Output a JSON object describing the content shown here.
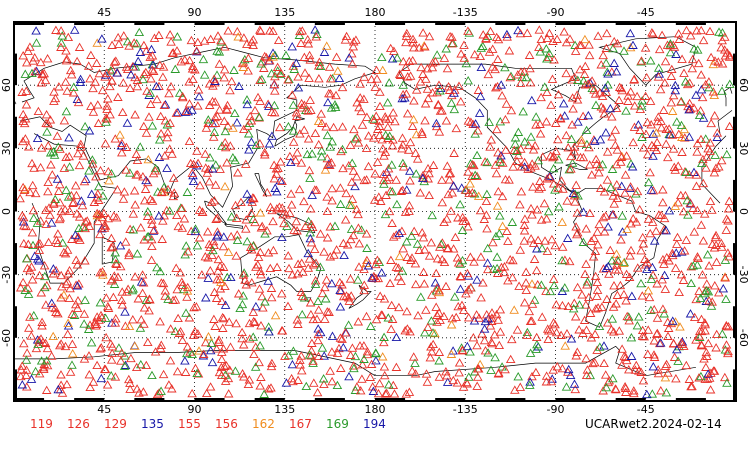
{
  "product_label": "UCARwet2.2024-02-14",
  "colors": {
    "frame": "#000000",
    "coast": "#000000",
    "grid": "#000000"
  },
  "map": {
    "projection": "cylindrical-equidistant",
    "lon_center": 180,
    "lat_range": [
      -90,
      90
    ],
    "top_lon_ticks": [
      "45",
      "90",
      "135",
      "180",
      "-135",
      "-90",
      "-45"
    ],
    "bottom_lon_ticks": [
      "45",
      "90",
      "135",
      "180",
      "-135",
      "-90",
      "-45"
    ],
    "left_lat_ticks": [
      "60",
      "30",
      "0",
      "-30",
      "-60"
    ],
    "right_lat_ticks": [
      "60",
      "30",
      "0",
      "-30",
      "-60"
    ]
  },
  "legend": [
    {
      "label": "119",
      "color": "#e8322a"
    },
    {
      "label": "126",
      "color": "#e8322a"
    },
    {
      "label": "129",
      "color": "#e8322a"
    },
    {
      "label": "135",
      "color": "#1818a8"
    },
    {
      "label": "155",
      "color": "#e8322a"
    },
    {
      "label": "156",
      "color": "#e8322a"
    },
    {
      "label": "162",
      "color": "#f08c1e"
    },
    {
      "label": "167",
      "color": "#e8322a"
    },
    {
      "label": "169",
      "color": "#2a9a2a"
    },
    {
      "label": "194",
      "color": "#1818a8"
    }
  ],
  "markers": {
    "symbol": "triangle-icon",
    "color_mix": [
      {
        "color": "#e8322a",
        "share": 0.72
      },
      {
        "color": "#2a9a2a",
        "share": 0.17
      },
      {
        "color": "#1818a8",
        "share": 0.08
      },
      {
        "color": "#f08c1e",
        "share": 0.03
      }
    ],
    "approx_count": 2600
  }
}
